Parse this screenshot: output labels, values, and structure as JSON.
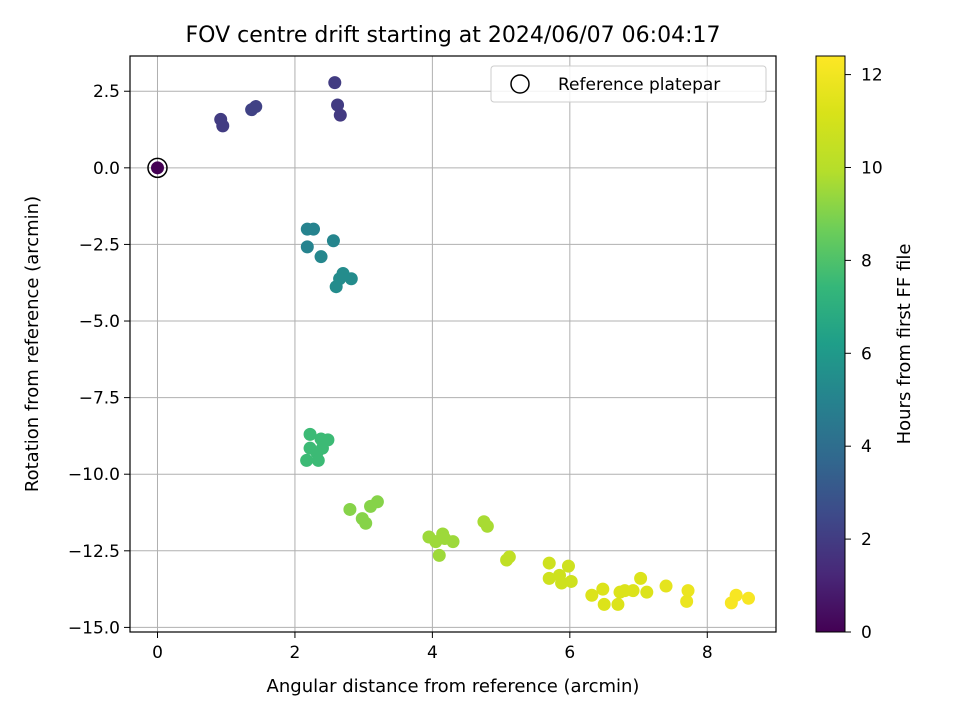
{
  "chart_data": {
    "type": "scatter",
    "title": "FOV centre drift starting at 2024/06/07 06:04:17",
    "xlabel": "Angular distance from reference (arcmin)",
    "ylabel": "Rotation from reference (arcmin)",
    "xlim": [
      -0.4,
      9.0
    ],
    "ylim": [
      -15.15,
      3.65
    ],
    "xticks": [
      0,
      2,
      4,
      6,
      8
    ],
    "xtick_labels": [
      "0",
      "2",
      "4",
      "6",
      "8"
    ],
    "yticks": [
      2.5,
      0.0,
      -2.5,
      -5.0,
      -7.5,
      -10.0,
      -12.5,
      -15.0
    ],
    "ytick_labels": [
      "2.5",
      "0.0",
      "−2.5",
      "−5.0",
      "−7.5",
      "−10.0",
      "−12.5",
      "−15.0"
    ],
    "grid": true,
    "legend": {
      "placement": "top-right",
      "entries": [
        "Reference platepar"
      ]
    },
    "colorbar": {
      "label": "Hours from first FF file",
      "range": [
        0,
        12.4
      ],
      "ticks": [
        0,
        2,
        4,
        6,
        8,
        10,
        12
      ],
      "tick_labels": [
        "0",
        "2",
        "4",
        "6",
        "8",
        "10",
        "12"
      ],
      "colormap": "viridis"
    },
    "reference_point": {
      "x": 0.0,
      "y": 0.0
    },
    "points": [
      {
        "x": 0.0,
        "y": 0.0,
        "c": 0.0
      },
      {
        "x": 0.92,
        "y": 1.58,
        "c": 2.0
      },
      {
        "x": 0.95,
        "y": 1.37,
        "c": 2.0
      },
      {
        "x": 1.37,
        "y": 1.9,
        "c": 2.2
      },
      {
        "x": 1.43,
        "y": 2.0,
        "c": 2.2
      },
      {
        "x": 2.58,
        "y": 2.78,
        "c": 2.0
      },
      {
        "x": 2.62,
        "y": 2.05,
        "c": 2.0
      },
      {
        "x": 2.66,
        "y": 1.72,
        "c": 1.9
      },
      {
        "x": 2.18,
        "y": -2.0,
        "c": 5.0
      },
      {
        "x": 2.27,
        "y": -2.0,
        "c": 5.0
      },
      {
        "x": 2.18,
        "y": -2.58,
        "c": 5.0
      },
      {
        "x": 2.56,
        "y": -2.38,
        "c": 5.1
      },
      {
        "x": 2.38,
        "y": -2.9,
        "c": 5.2
      },
      {
        "x": 2.7,
        "y": -3.45,
        "c": 5.4
      },
      {
        "x": 2.65,
        "y": -3.62,
        "c": 5.4
      },
      {
        "x": 2.82,
        "y": -3.62,
        "c": 5.4
      },
      {
        "x": 2.6,
        "y": -3.88,
        "c": 5.4
      },
      {
        "x": 2.22,
        "y": -8.7,
        "c": 7.6
      },
      {
        "x": 2.38,
        "y": -8.85,
        "c": 7.6
      },
      {
        "x": 2.48,
        "y": -8.88,
        "c": 7.6
      },
      {
        "x": 2.22,
        "y": -9.15,
        "c": 7.6
      },
      {
        "x": 2.4,
        "y": -9.15,
        "c": 7.6
      },
      {
        "x": 2.32,
        "y": -9.3,
        "c": 7.6
      },
      {
        "x": 2.17,
        "y": -9.55,
        "c": 7.6
      },
      {
        "x": 2.34,
        "y": -9.55,
        "c": 7.6
      },
      {
        "x": 2.8,
        "y": -11.15,
        "c": 9.1
      },
      {
        "x": 3.2,
        "y": -10.9,
        "c": 9.1
      },
      {
        "x": 3.1,
        "y": -11.05,
        "c": 9.1
      },
      {
        "x": 2.98,
        "y": -11.45,
        "c": 9.1
      },
      {
        "x": 3.03,
        "y": -11.6,
        "c": 9.1
      },
      {
        "x": 3.95,
        "y": -12.05,
        "c": 9.5
      },
      {
        "x": 4.05,
        "y": -12.2,
        "c": 9.5
      },
      {
        "x": 4.15,
        "y": -11.95,
        "c": 9.5
      },
      {
        "x": 4.18,
        "y": -12.1,
        "c": 9.5
      },
      {
        "x": 4.3,
        "y": -12.2,
        "c": 9.5
      },
      {
        "x": 4.1,
        "y": -12.65,
        "c": 9.5
      },
      {
        "x": 4.75,
        "y": -11.55,
        "c": 9.7
      },
      {
        "x": 4.8,
        "y": -11.7,
        "c": 9.7
      },
      {
        "x": 5.08,
        "y": -12.8,
        "c": 10.3
      },
      {
        "x": 5.12,
        "y": -12.7,
        "c": 10.3
      },
      {
        "x": 5.7,
        "y": -12.9,
        "c": 10.8
      },
      {
        "x": 5.7,
        "y": -13.4,
        "c": 10.8
      },
      {
        "x": 5.85,
        "y": -13.3,
        "c": 10.8
      },
      {
        "x": 5.88,
        "y": -13.55,
        "c": 10.8
      },
      {
        "x": 5.98,
        "y": -13.0,
        "c": 10.8
      },
      {
        "x": 6.02,
        "y": -13.5,
        "c": 10.8
      },
      {
        "x": 6.32,
        "y": -13.95,
        "c": 11.3
      },
      {
        "x": 6.48,
        "y": -13.75,
        "c": 11.3
      },
      {
        "x": 6.5,
        "y": -14.25,
        "c": 11.3
      },
      {
        "x": 6.7,
        "y": -14.25,
        "c": 11.3
      },
      {
        "x": 6.73,
        "y": -13.85,
        "c": 11.3
      },
      {
        "x": 6.8,
        "y": -13.8,
        "c": 11.3
      },
      {
        "x": 6.92,
        "y": -13.8,
        "c": 11.3
      },
      {
        "x": 7.03,
        "y": -13.4,
        "c": 11.3
      },
      {
        "x": 7.12,
        "y": -13.85,
        "c": 11.3
      },
      {
        "x": 7.4,
        "y": -13.65,
        "c": 11.6
      },
      {
        "x": 7.7,
        "y": -14.15,
        "c": 11.8
      },
      {
        "x": 7.72,
        "y": -13.8,
        "c": 11.8
      },
      {
        "x": 8.35,
        "y": -14.2,
        "c": 12.2
      },
      {
        "x": 8.42,
        "y": -13.95,
        "c": 12.2
      },
      {
        "x": 8.6,
        "y": -14.05,
        "c": 12.2
      }
    ]
  }
}
